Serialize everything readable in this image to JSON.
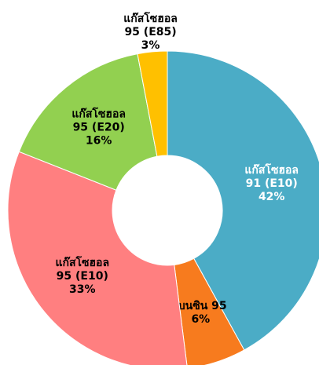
{
  "chart_data": {
    "type": "donut",
    "categories": [
      "แก๊สโซฮอล 91 (E10)",
      "เบนซิน 95",
      "แก๊สโซฮอล 95 (E10)",
      "แก๊สโซฮอล 95 (E20)",
      "แก๊สโซฮอล 95 (E85)"
    ],
    "values": [
      42,
      6,
      33,
      16,
      3
    ],
    "value_labels": [
      "42%",
      "6%",
      "33%",
      "16%",
      "3%"
    ],
    "colors": [
      "#4bacc6",
      "#f77b1e",
      "#ff7f80",
      "#92d050",
      "#ffc000"
    ],
    "label_colors": [
      "#ffffff",
      "#000000",
      "#000000",
      "#000000",
      "#000000"
    ]
  }
}
